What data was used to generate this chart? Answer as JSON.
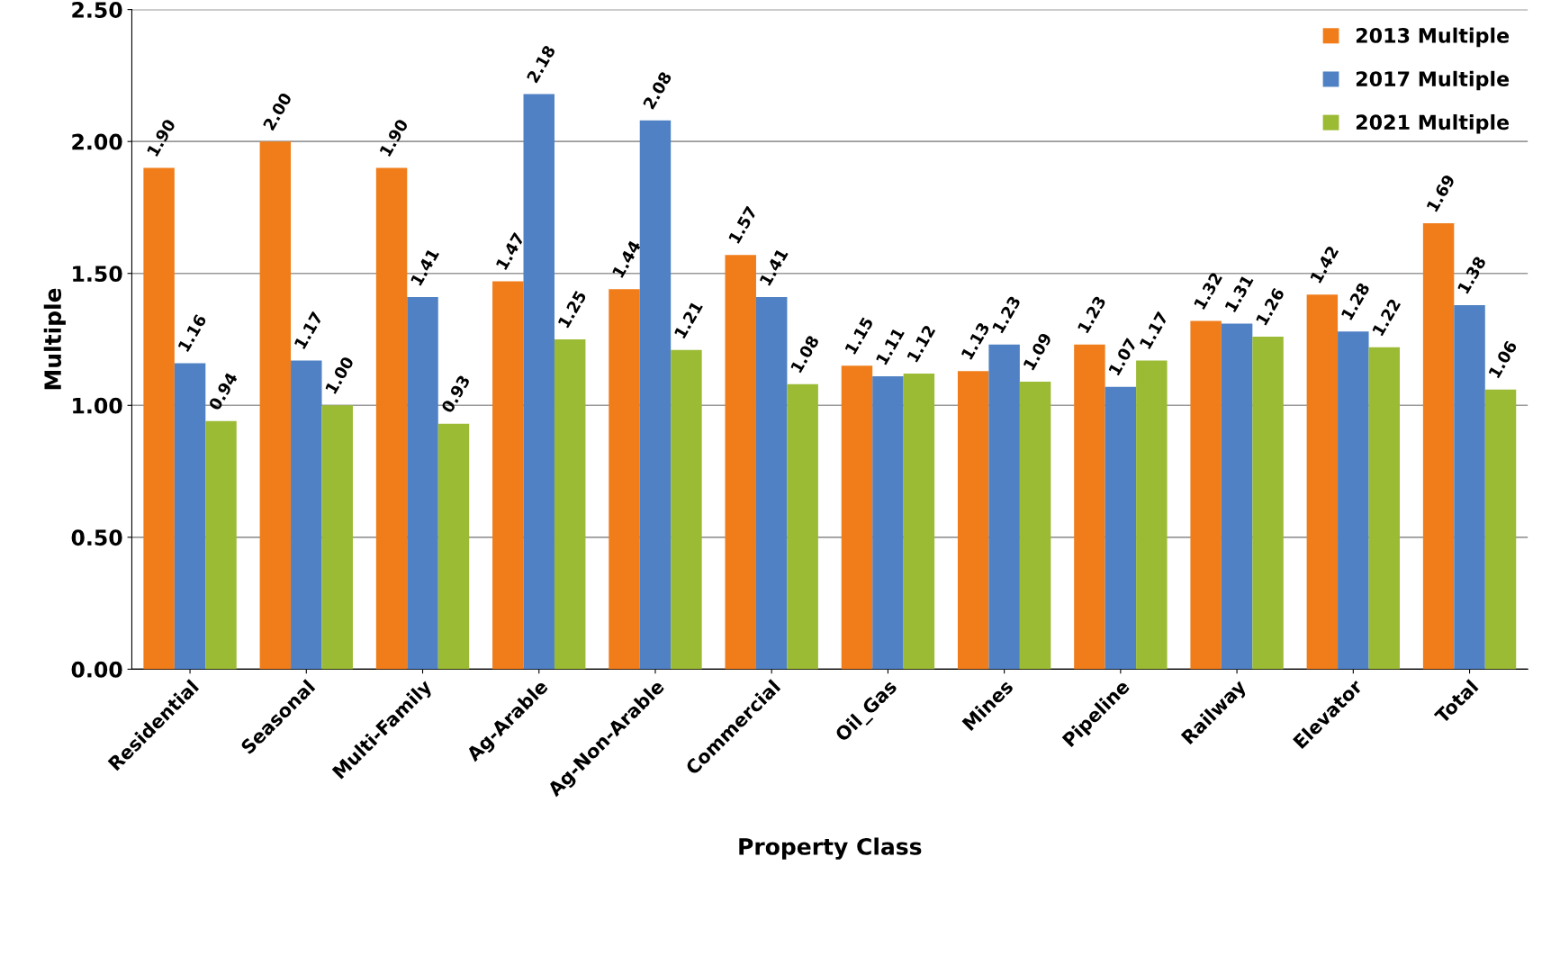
{
  "chart_data": {
    "type": "bar",
    "xlabel": "Property Class",
    "ylabel": "Multiple",
    "categories": [
      "Residential",
      "Seasonal",
      "Multi-Family",
      "Ag-Arable",
      "Ag-Non-Arable",
      "Commercial",
      "Oil_Gas",
      "Mines",
      "Pipeline",
      "Railway",
      "Elevator",
      "Total"
    ],
    "series": [
      {
        "name": "2013 Multiple",
        "color": "#f07d1a",
        "values": [
          1.9,
          2.0,
          1.9,
          1.47,
          1.44,
          1.57,
          1.15,
          1.13,
          1.23,
          1.32,
          1.42,
          1.69
        ],
        "value_labels": [
          "1.90",
          "2.00",
          "1.90",
          "1.47",
          "1.44",
          "1.57",
          "1.15",
          "1.13",
          "1.23",
          "1.32",
          "1.42",
          "1.69"
        ]
      },
      {
        "name": "2017 Multiple",
        "color": "#4f81c4",
        "values": [
          1.16,
          1.17,
          1.41,
          2.18,
          2.08,
          1.41,
          1.11,
          1.23,
          1.07,
          1.31,
          1.28,
          1.38
        ],
        "value_labels": [
          "1.16",
          "1.17",
          "1.41",
          "2.18",
          "2.08",
          "1.41",
          "1.11",
          "1.23",
          "1.07",
          "1.31",
          "1.28",
          "1.38"
        ]
      },
      {
        "name": "2021 Multiple",
        "color": "#9bbb34",
        "values": [
          0.94,
          1.0,
          0.93,
          1.25,
          1.21,
          1.08,
          1.12,
          1.09,
          1.17,
          1.26,
          1.22,
          1.06
        ],
        "value_labels": [
          "0.94",
          "1.00",
          "0.93",
          "1.25",
          "1.21",
          "1.08",
          "1.12",
          "1.09",
          "1.17",
          "1.26",
          "1.22",
          "1.06"
        ]
      }
    ],
    "ylim": [
      0,
      2.5
    ],
    "yticks": [
      {
        "value": 0,
        "label": "0.00"
      },
      {
        "value": 0.5,
        "label": "0.50"
      },
      {
        "value": 1,
        "label": "1.00"
      },
      {
        "value": 1.5,
        "label": "1.50"
      },
      {
        "value": 2,
        "label": "2.00"
      },
      {
        "value": 2.5,
        "label": "2.50"
      }
    ],
    "grid": "y",
    "legend": "top right"
  }
}
